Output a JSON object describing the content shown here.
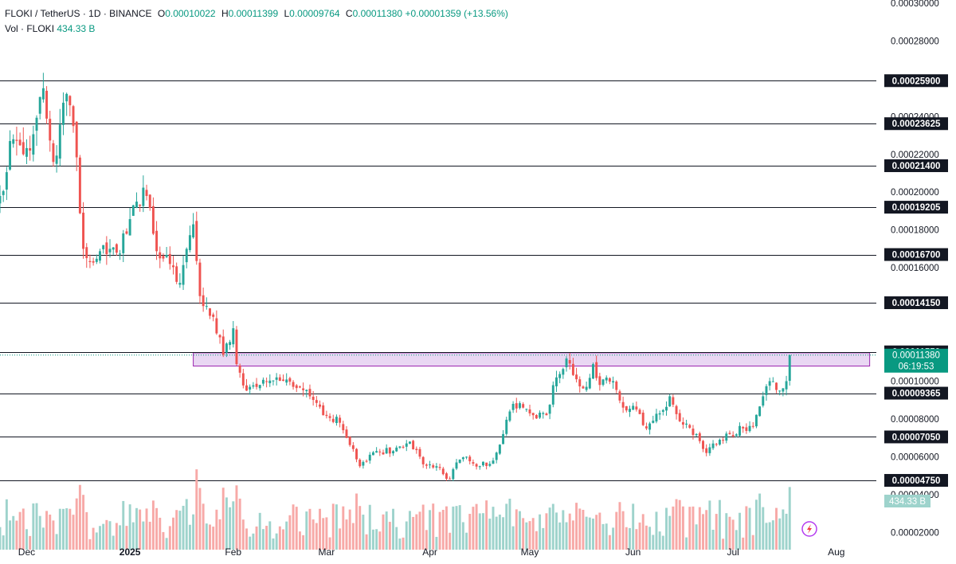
{
  "header": {
    "symbol": "FLOKI / TetherUS · 1D · BINANCE",
    "o_label": "O",
    "o_value": "0.00010022",
    "h_label": "H",
    "h_value": "0.00011399",
    "l_label": "L",
    "l_value": "0.00009764",
    "c_label": "C",
    "c_value": "0.00011380",
    "change": "+0.00001359 (+13.56%)",
    "vol_label": "Vol · FLOKI",
    "vol_value": "434.33 B"
  },
  "colors": {
    "up": "#26a69a",
    "down": "#ef5350",
    "vol_up": "#9ed3cc",
    "vol_down": "#f7a9a7",
    "zone_fill": "#e1c9ef",
    "zone_stroke": "#9c27b0",
    "level_line": "#131722",
    "price_tag": "#089981"
  },
  "chart_data": {
    "type": "candlestick",
    "x_ticks": [
      {
        "label": "Dec",
        "date": "2024-12-01"
      },
      {
        "label": "2025",
        "date": "2025-01-01"
      },
      {
        "label": "Feb",
        "date": "2025-02-01"
      },
      {
        "label": "Mar",
        "date": "2025-03-01"
      },
      {
        "label": "Apr",
        "date": "2025-04-01"
      },
      {
        "label": "May",
        "date": "2025-05-01"
      },
      {
        "label": "Jun",
        "date": "2025-06-01"
      },
      {
        "label": "Jul",
        "date": "2025-07-01"
      },
      {
        "label": "Aug",
        "date": "2025-08-01"
      }
    ],
    "x_range": [
      "2024-11-23",
      "2025-08-13"
    ],
    "y_ticks": [
      "0.00002000",
      "0.00004000",
      "0.00006000",
      "0.00008000",
      "0.00010000",
      "0.00016000",
      "0.00018000",
      "0.00020000",
      "0.00022000",
      "0.00024000",
      "0.00028000",
      "0.00030000"
    ],
    "ylim": [
      1e-05,
      0.0003
    ],
    "levels": [
      "0.00025900",
      "0.00023625",
      "0.00021400",
      "0.00019205",
      "0.00016700",
      "0.00014150",
      "0.00011550",
      "0.00009365",
      "0.00007050",
      "0.00004750"
    ],
    "zone": {
      "from": "2025-01-20",
      "to": "2025-08-11",
      "low": 0.000108,
      "high": 0.000115
    },
    "last_price": "0.00011380",
    "countdown": "06:19:53",
    "volume_tag": "434.33 B",
    "anchors": [
      {
        "d": "2024-11-23",
        "c": 0.000198
      },
      {
        "d": "2024-11-27",
        "c": 0.000228
      },
      {
        "d": "2024-12-02",
        "c": 0.000222
      },
      {
        "d": "2024-12-06",
        "c": 0.000255
      },
      {
        "d": "2024-12-09",
        "c": 0.000216
      },
      {
        "d": "2024-12-13",
        "c": 0.000252
      },
      {
        "d": "2024-12-15",
        "c": 0.000235
      },
      {
        "d": "2024-12-18",
        "c": 0.00017
      },
      {
        "d": "2024-12-20",
        "c": 0.000163
      },
      {
        "d": "2024-12-24",
        "c": 0.000172
      },
      {
        "d": "2024-12-28",
        "c": 0.000168
      },
      {
        "d": "2024-12-31",
        "c": 0.000178
      },
      {
        "d": "2025-01-03",
        "c": 0.000195
      },
      {
        "d": "2025-01-06",
        "c": 0.000198
      },
      {
        "d": "2025-01-08",
        "c": 0.000178
      },
      {
        "d": "2025-01-10",
        "c": 0.000165
      },
      {
        "d": "2025-01-13",
        "c": 0.000162
      },
      {
        "d": "2025-01-16",
        "c": 0.000152
      },
      {
        "d": "2025-01-18",
        "c": 0.00017
      },
      {
        "d": "2025-01-20",
        "c": 0.000183
      },
      {
        "d": "2025-01-22",
        "c": 0.000145
      },
      {
        "d": "2025-01-26",
        "c": 0.000134
      },
      {
        "d": "2025-01-29",
        "c": 0.000114
      },
      {
        "d": "2025-02-01",
        "c": 0.000128
      },
      {
        "d": "2025-02-02",
        "c": 0.000109
      },
      {
        "d": "2025-02-05",
        "c": 9.5e-05
      },
      {
        "d": "2025-02-09",
        "c": 9.8e-05
      },
      {
        "d": "2025-02-14",
        "c": 0.000102
      },
      {
        "d": "2025-02-19",
        "c": 9.7e-05
      },
      {
        "d": "2025-02-24",
        "c": 9.2e-05
      },
      {
        "d": "2025-02-28",
        "c": 8.2e-05
      },
      {
        "d": "2025-03-05",
        "c": 7.8e-05
      },
      {
        "d": "2025-03-11",
        "c": 5.5e-05
      },
      {
        "d": "2025-03-16",
        "c": 6.3e-05
      },
      {
        "d": "2025-03-21",
        "c": 6.3e-05
      },
      {
        "d": "2025-03-26",
        "c": 6.8e-05
      },
      {
        "d": "2025-03-30",
        "c": 5.6e-05
      },
      {
        "d": "2025-04-03",
        "c": 5.5e-05
      },
      {
        "d": "2025-04-07",
        "c": 4.8e-05
      },
      {
        "d": "2025-04-09",
        "c": 5.7e-05
      },
      {
        "d": "2025-04-12",
        "c": 6e-05
      },
      {
        "d": "2025-04-16",
        "c": 5.5e-05
      },
      {
        "d": "2025-04-20",
        "c": 5.8e-05
      },
      {
        "d": "2025-04-23",
        "c": 7.2e-05
      },
      {
        "d": "2025-04-26",
        "c": 8.8e-05
      },
      {
        "d": "2025-04-29",
        "c": 8.6e-05
      },
      {
        "d": "2025-05-02",
        "c": 8.2e-05
      },
      {
        "d": "2025-05-06",
        "c": 8.2e-05
      },
      {
        "d": "2025-05-09",
        "c": 0.000102
      },
      {
        "d": "2025-05-12",
        "c": 0.000112
      },
      {
        "d": "2025-05-15",
        "c": 0.000101
      },
      {
        "d": "2025-05-18",
        "c": 9.7e-05
      },
      {
        "d": "2025-05-20",
        "c": 0.000109
      },
      {
        "d": "2025-05-22",
        "c": 9.8e-05
      },
      {
        "d": "2025-05-26",
        "c": 0.0001
      },
      {
        "d": "2025-05-29",
        "c": 8.6e-05
      },
      {
        "d": "2025-06-02",
        "c": 8.5e-05
      },
      {
        "d": "2025-06-05",
        "c": 7.5e-05
      },
      {
        "d": "2025-06-09",
        "c": 8.3e-05
      },
      {
        "d": "2025-06-12",
        "c": 9.2e-05
      },
      {
        "d": "2025-06-16",
        "c": 7.7e-05
      },
      {
        "d": "2025-06-20",
        "c": 7.2e-05
      },
      {
        "d": "2025-06-23",
        "c": 6.2e-05
      },
      {
        "d": "2025-06-27",
        "c": 6.9e-05
      },
      {
        "d": "2025-06-30",
        "c": 7.2e-05
      },
      {
        "d": "2025-07-04",
        "c": 7.5e-05
      },
      {
        "d": "2025-07-07",
        "c": 7.6e-05
      },
      {
        "d": "2025-07-10",
        "c": 9.2e-05
      },
      {
        "d": "2025-07-12",
        "c": 0.0001
      },
      {
        "d": "2025-07-15",
        "c": 9.5e-05
      },
      {
        "d": "2025-07-17",
        "c": 0.0001
      },
      {
        "d": "2025-07-18",
        "c": 0.000114
      }
    ]
  }
}
